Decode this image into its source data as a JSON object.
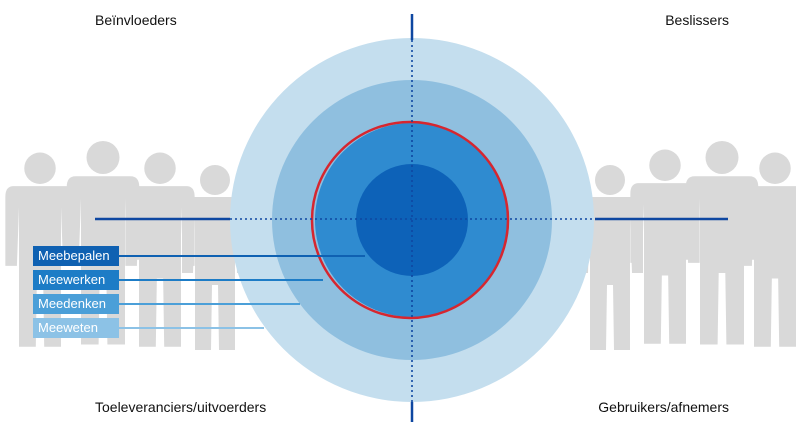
{
  "quadrants": {
    "top_left": "Beïnvloeders",
    "top_right": "Beslissers",
    "bottom_left": "Toeleveranciers/uitvoerders",
    "bottom_right": "Gebruikers/afnemers"
  },
  "levels": [
    {
      "label": "Meebepalen",
      "color": "#0f61b2"
    },
    {
      "label": "Meewerken",
      "color": "#1d7cc6"
    },
    {
      "label": "Meedenken",
      "color": "#4b9fd8"
    },
    {
      "label": "Meeweten",
      "color": "#8cc2e6"
    }
  ],
  "colors": {
    "ring_outer": "#c4deee",
    "ring_second": "#8fbfdf",
    "ring_third": "#2f8bd0",
    "core": "#0d62b8",
    "highlight": "#d6262f",
    "axis": "#0e47a1",
    "people": "#d9d9d9"
  },
  "icons": [
    "people-group-left-icon",
    "people-group-right-icon"
  ]
}
